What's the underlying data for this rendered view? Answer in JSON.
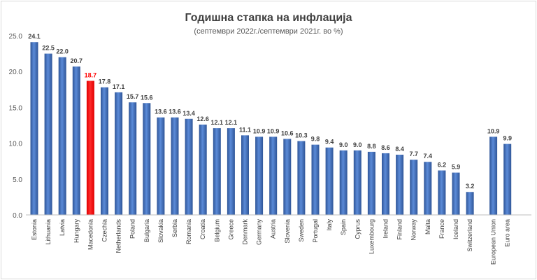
{
  "chart_data": {
    "type": "bar",
    "title": "Годишна стапка на инфлација",
    "subtitle": "(септември 2022г./септември 2021г. во %)",
    "xlabel": "",
    "ylabel": "",
    "ylim": [
      0,
      25
    ],
    "yticks": [
      "0.0",
      "5.0",
      "10.0",
      "15.0",
      "20.0",
      "25.0"
    ],
    "grid": false,
    "legend": "none",
    "categories": [
      "Estonia",
      "Lithuania",
      "Latvia",
      "Hungary",
      "Macedonia",
      "Czechia",
      "Netherlands",
      "Poland",
      "Bulgaria",
      "Slovakia",
      "Serbia",
      "Romania",
      "Croatia",
      "Belgium",
      "Greece",
      "Denmark",
      "Germany",
      "Austria",
      "Slovenia",
      "Sweden",
      "Portugal",
      "Italy",
      "Spain",
      "Cyprus",
      "Luxembourg",
      "Ireland",
      "Finland",
      "Norway",
      "Malta",
      "France",
      "Iceland",
      "Switzerland",
      "European Union",
      "Euro area"
    ],
    "values": [
      24.1,
      22.5,
      22.0,
      20.7,
      18.7,
      17.8,
      17.1,
      15.7,
      15.6,
      13.6,
      13.6,
      13.4,
      12.6,
      12.1,
      12.1,
      11.1,
      10.9,
      10.9,
      10.6,
      10.3,
      9.8,
      9.4,
      9.0,
      9.0,
      8.8,
      8.6,
      8.4,
      7.7,
      7.4,
      6.2,
      5.9,
      3.2,
      10.9,
      9.9
    ],
    "value_labels": [
      "24.1",
      "22.5",
      "22.0",
      "20.7",
      "18.7",
      "17.8",
      "17.1",
      "15.7",
      "15.6",
      "13.6",
      "13.6",
      "13.4",
      "12.6",
      "12.1",
      "12.1",
      "11.1",
      "10.9",
      "10.9",
      "10.6",
      "10.3",
      "9.8",
      "9.4",
      "9.0",
      "9.0",
      "8.8",
      "8.6",
      "8.4",
      "7.7",
      "7.4",
      "6.2",
      "5.9",
      "3.2",
      "10.9",
      "9.9"
    ],
    "highlight_category": "Macedonia",
    "colors": {
      "bar": "#4472c4",
      "bar_dark": "#2f5597",
      "highlight": "#ff0000",
      "highlight_label": "#ff0000",
      "label": "#404040",
      "axis": "#bfbfbf"
    }
  }
}
